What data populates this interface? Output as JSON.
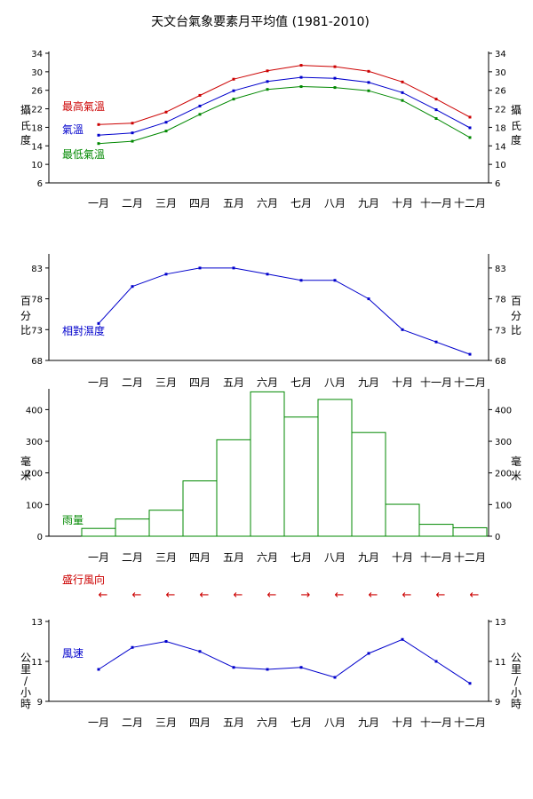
{
  "title": "天文台氣象要素月平均值 (1981-2010)",
  "months": [
    "一月",
    "二月",
    "三月",
    "四月",
    "五月",
    "六月",
    "七月",
    "八月",
    "九月",
    "十月",
    "十一月",
    "十二月"
  ],
  "colors": {
    "red": "#cc0000",
    "blue": "#0000cc",
    "green": "#008800"
  },
  "chart_data": [
    {
      "type": "line",
      "title": "",
      "ylabel": "攝氏度",
      "ylim": [
        6,
        34
      ],
      "yticks": [
        6,
        10,
        14,
        18,
        22,
        26,
        30,
        34
      ],
      "series": [
        {
          "name": "最高氣溫",
          "color": "#cc0000",
          "values": [
            18.6,
            18.9,
            21.3,
            24.9,
            28.4,
            30.2,
            31.4,
            31.1,
            30.1,
            27.8,
            24.1,
            20.2
          ]
        },
        {
          "name": "氣溫",
          "color": "#0000cc",
          "values": [
            16.3,
            16.8,
            19.1,
            22.6,
            25.9,
            27.9,
            28.8,
            28.6,
            27.7,
            25.5,
            21.8,
            17.9
          ]
        },
        {
          "name": "最低氣溫",
          "color": "#008800",
          "values": [
            14.5,
            15.0,
            17.2,
            20.8,
            24.1,
            26.2,
            26.8,
            26.6,
            25.9,
            23.8,
            19.9,
            15.8
          ]
        }
      ]
    },
    {
      "type": "line",
      "title": "",
      "ylabel": "百分比",
      "ylim": [
        68,
        85
      ],
      "yticks": [
        68,
        73,
        78,
        83
      ],
      "series": [
        {
          "name": "相對濕度",
          "color": "#0000cc",
          "values": [
            74,
            80,
            82,
            83,
            83,
            82,
            81,
            81,
            78,
            73,
            71,
            69
          ]
        }
      ]
    },
    {
      "type": "bar",
      "title": "",
      "ylabel": "毫米",
      "ylim": [
        0,
        460
      ],
      "yticks": [
        0,
        100,
        200,
        300,
        400
      ],
      "series": [
        {
          "name": "雨量",
          "color": "#008800",
          "values": [
            24.7,
            54.4,
            82.2,
            174.7,
            304.7,
            456.1,
            376.5,
            432.2,
            327.6,
            100.9,
            37.6,
            26.8
          ]
        }
      ]
    },
    {
      "type": "line",
      "title": "",
      "ylabel": "公里/小時",
      "ylim": [
        9,
        13
      ],
      "yticks": [
        9,
        11,
        13
      ],
      "series": [
        {
          "name": "風速",
          "color": "#0000cc",
          "values": [
            10.6,
            11.7,
            12.0,
            11.5,
            10.7,
            10.6,
            10.7,
            10.2,
            11.4,
            12.1,
            11.0,
            9.9
          ]
        }
      ]
    }
  ],
  "wind_direction": {
    "label": "盛行風向",
    "arrows": [
      "←",
      "←",
      "←",
      "←",
      "←",
      "←",
      "→",
      "←",
      "←",
      "←",
      "←",
      "←"
    ]
  }
}
